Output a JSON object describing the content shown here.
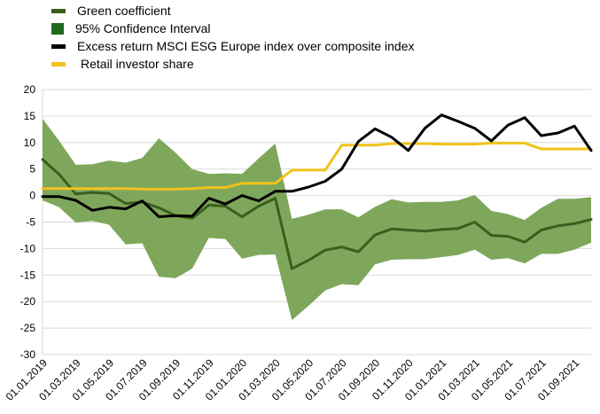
{
  "chart_data": {
    "type": "line",
    "title": "",
    "xlabel": "",
    "ylabel": "",
    "ylim": [
      -30,
      20
    ],
    "yticks": [
      20,
      15,
      10,
      5,
      0,
      -5,
      -10,
      -15,
      -20,
      -25,
      -30
    ],
    "grid": true,
    "legend_position": "top-left",
    "x_tick_labels": [
      "01.01.2019",
      "01.03.2019",
      "01.05.2019",
      "01.07.2019",
      "01.09.2019",
      "01.11.2019",
      "01.01.2020",
      "01.03.2020",
      "01.05.2020",
      "01.07.2020",
      "01.09.2020",
      "01.11.2020",
      "01.01.2021",
      "01.03.2021",
      "01.05.2021",
      "01.07.2021",
      "01.09.2021"
    ],
    "x_tick_positions": [
      0,
      2,
      4,
      6,
      8,
      10,
      12,
      14,
      16,
      18,
      20,
      22,
      24,
      26,
      28,
      30,
      32
    ],
    "x_range": [
      0,
      33
    ],
    "months": [
      "01.2019",
      "02.2019",
      "03.2019",
      "04.2019",
      "05.2019",
      "06.2019",
      "07.2019",
      "08.2019",
      "09.2019",
      "10.2019",
      "11.2019",
      "12.2019",
      "01.2020",
      "02.2020",
      "03.2020",
      "04.2020",
      "05.2020",
      "06.2020",
      "07.2020",
      "08.2020",
      "09.2020",
      "10.2020",
      "11.2020",
      "12.2020",
      "01.2021",
      "02.2021",
      "03.2021",
      "04.2021",
      "05.2021",
      "06.2021",
      "07.2021",
      "08.2021",
      "09.2021",
      "10.2021"
    ],
    "series": [
      {
        "name": "Green coefficient",
        "kind": "line",
        "color": "#3a5e1e",
        "values": [
          6.8,
          4,
          0.3,
          0.6,
          0.4,
          -1.5,
          -1.2,
          -2.3,
          -3.8,
          -4.3,
          -1.8,
          -2,
          -4,
          -2,
          -0.5,
          -13.8,
          -12.2,
          -10.3,
          -9.7,
          -10.6,
          -7.4,
          -6.3,
          -6.5,
          -6.7,
          -6.4,
          -6.2,
          -5,
          -7.5,
          -7.7,
          -8.8,
          -6.5,
          -5.7,
          -5.3,
          -4.5
        ]
      },
      {
        "name": "95% Confidence Interval",
        "kind": "band",
        "color": "#7fa75b",
        "swatch_color": "#1e6b1e",
        "upper": [
          14.5,
          10.3,
          5.8,
          5.9,
          6.6,
          6.2,
          7.1,
          10.8,
          8.1,
          5,
          4.1,
          4.2,
          4.1,
          7,
          9.8,
          -4.4,
          -3.6,
          -2.6,
          -2.6,
          -4.1,
          -2.1,
          -0.7,
          -1.3,
          -1.2,
          -1.2,
          -0.9,
          0.1,
          -2.9,
          -3.5,
          -4.6,
          -2.3,
          -0.6,
          -0.6,
          -0.3
        ],
        "lower": [
          -0.9,
          -2.2,
          -5.1,
          -4.8,
          -5.5,
          -9.2,
          -9,
          -15.3,
          -15.6,
          -13.8,
          -8,
          -8.2,
          -11.9,
          -11.2,
          -11.1,
          -23.5,
          -20.8,
          -17.9,
          -16.7,
          -16.9,
          -13,
          -12.1,
          -12,
          -12,
          -11.6,
          -11.2,
          -10.2,
          -12.1,
          -11.8,
          -12.8,
          -11,
          -11,
          -10.2,
          -8.9
        ]
      },
      {
        "name": "Excess return MSCI ESG Europe index over composite index",
        "kind": "line",
        "color": "#000000",
        "values": [
          -0.2,
          -0.2,
          -0.9,
          -2.8,
          -2.2,
          -2.5,
          -1,
          -4,
          -3.8,
          -3.9,
          -0.5,
          -1.6,
          0,
          -1,
          0.8,
          0.8,
          1.6,
          2.7,
          5,
          10.2,
          12.6,
          11,
          8.5,
          12.7,
          15.2,
          14,
          12.7,
          10.3,
          13.3,
          14.7,
          11.3,
          11.8,
          13.1,
          8.5
        ]
      },
      {
        "name": "Retail investor share",
        "kind": "line",
        "color": "#f0c31c",
        "values": [
          1.3,
          1.3,
          1.3,
          1.3,
          1.3,
          1.3,
          1.2,
          1.2,
          1.2,
          1.3,
          1.5,
          1.5,
          2.3,
          2.3,
          2.3,
          4.8,
          4.8,
          4.8,
          9.5,
          9.5,
          9.5,
          9.8,
          9.8,
          9.8,
          9.7,
          9.7,
          9.7,
          9.9,
          9.9,
          9.9,
          8.8,
          8.8,
          8.8,
          8.8
        ]
      }
    ]
  }
}
